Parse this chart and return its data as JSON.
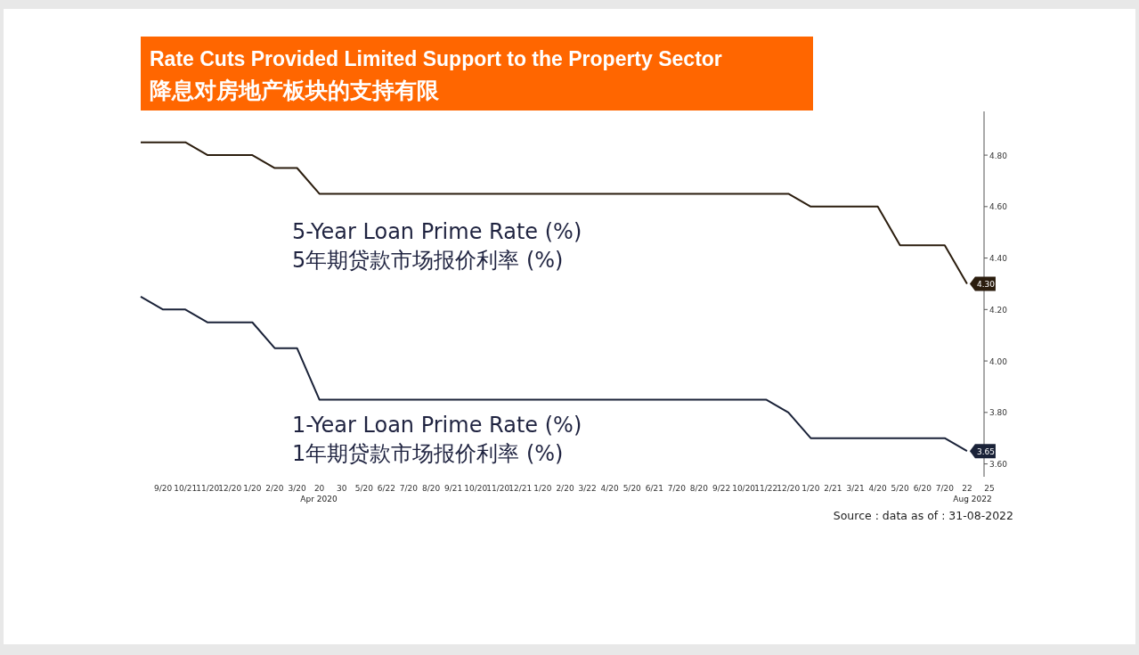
{
  "chart_data": {
    "type": "line",
    "title": "Rate Cuts Provided Limited Support to the Property Sector",
    "subtitle": "降息对房地产板块的支持有限",
    "categories": [
      null,
      "9/20",
      "10/21",
      "11/20",
      "12/20",
      "1/20",
      "2/20",
      "3/20",
      "20",
      "30",
      "5/20",
      "6/22",
      "7/20",
      "8/20",
      "9/21",
      "10/20",
      "11/20",
      "12/21",
      "1/20",
      "2/20",
      "3/22",
      "4/20",
      "5/20",
      "6/21",
      "7/20",
      "8/20",
      "9/22",
      "10/20",
      "11/22",
      "12/20",
      "1/20",
      "2/21",
      "3/21",
      "4/20",
      "5/20",
      "6/20",
      "7/20",
      "22",
      "25"
    ],
    "series": [
      {
        "name": "5-Year Loan Prime Rate (%)\n5年期贷款市场报价利率 (%)",
        "color": "#2b1d0e",
        "values": [
          4.85,
          4.85,
          4.85,
          4.8,
          4.8,
          4.8,
          4.75,
          4.75,
          4.65,
          4.65,
          4.65,
          4.65,
          4.65,
          4.65,
          4.65,
          4.65,
          4.65,
          4.65,
          4.65,
          4.65,
          4.65,
          4.65,
          4.65,
          4.65,
          4.65,
          4.65,
          4.65,
          4.65,
          4.65,
          4.65,
          4.6,
          4.6,
          4.6,
          4.6,
          4.45,
          4.45,
          4.45,
          4.3,
          null
        ],
        "value_labels": [
          null,
          null,
          null,
          null,
          null,
          null,
          null,
          null,
          null,
          null,
          null,
          null,
          null,
          null,
          null,
          null,
          null,
          null,
          null,
          null,
          null,
          null,
          null,
          null,
          null,
          null,
          null,
          null,
          null,
          null,
          null,
          null,
          null,
          null,
          null,
          null,
          null,
          "4.30",
          null
        ]
      },
      {
        "name": "1-Year Loan Prime Rate (%)\n1年期贷款市场报价利率 (%)",
        "color": "#1a2238",
        "values": [
          4.25,
          4.2,
          4.2,
          4.15,
          4.15,
          4.15,
          4.05,
          4.05,
          3.85,
          3.85,
          3.85,
          3.85,
          3.85,
          3.85,
          3.85,
          3.85,
          3.85,
          3.85,
          3.85,
          3.85,
          3.85,
          3.85,
          3.85,
          3.85,
          3.85,
          3.85,
          3.85,
          3.85,
          3.85,
          3.8,
          3.7,
          3.7,
          3.7,
          3.7,
          3.7,
          3.7,
          3.7,
          3.65,
          null
        ],
        "value_labels": [
          null,
          null,
          null,
          null,
          null,
          null,
          null,
          null,
          null,
          null,
          null,
          null,
          null,
          null,
          null,
          null,
          null,
          null,
          null,
          null,
          null,
          null,
          null,
          null,
          null,
          null,
          null,
          null,
          null,
          null,
          null,
          null,
          null,
          null,
          null,
          null,
          null,
          "3.65",
          null
        ]
      }
    ],
    "ylim": [
      3.55,
      4.97
    ],
    "yticks": [
      {
        "value": 3.6,
        "label": "3.60"
      },
      {
        "value": 3.8,
        "label": "3.80"
      },
      {
        "value": 4.0,
        "label": "4.00"
      },
      {
        "value": 4.2,
        "label": "4.20"
      },
      {
        "value": 4.4,
        "label": "4.40"
      },
      {
        "value": 4.6,
        "label": "4.60"
      },
      {
        "value": 4.8,
        "label": "4.80"
      }
    ],
    "annotations": [
      "Apr 2020",
      "Aug 2022",
      "Source : data as of : 31-08-2022"
    ],
    "grid": false,
    "marker": "none",
    "line_style": "solid"
  }
}
